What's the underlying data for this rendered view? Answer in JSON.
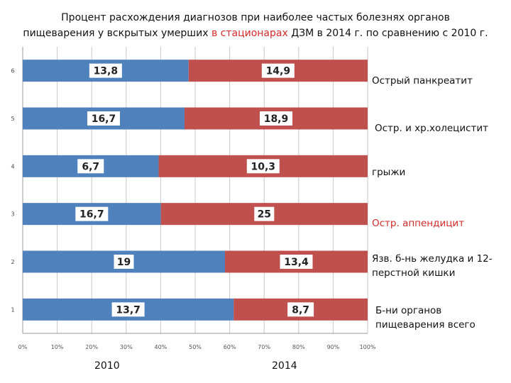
{
  "title": {
    "line1": "Процент расхождения диагнозов при наиболее частых  болезнях органов",
    "line2_before": "пищеварения у вскрытых умерших ",
    "line2_highlight": "в стационарах",
    "line2_after": " ДЗМ в 2014 г. по сравнению  с 2010 г."
  },
  "colors": {
    "series_2010": "#4f81bd",
    "series_2014": "#c0504d",
    "highlight": "#d42a2a"
  },
  "chart_data": {
    "type": "bar",
    "orientation": "horizontal",
    "stacked": "percent",
    "title": "Процент расхождения диагнозов при наиболее частых болезнях органов пищеварения у вскрытых умерших в стационарах ДЗМ в 2014 г. по сравнению с 2010 г.",
    "categories": [
      "1",
      "2",
      "3",
      "4",
      "5",
      "6"
    ],
    "series": [
      {
        "name": "2010",
        "values": [
          13.7,
          19,
          16.7,
          6.7,
          16.7,
          13.8
        ],
        "labels": [
          "13,7",
          "19",
          "16,7",
          "6,7",
          "16,7",
          "13,8"
        ]
      },
      {
        "name": "2014",
        "values": [
          8.7,
          13.4,
          25,
          10.3,
          18.9,
          14.9
        ],
        "labels": [
          "8,7",
          "13,4",
          "25",
          "10,3",
          "18,9",
          "14,9"
        ]
      }
    ],
    "x_ticks": [
      "0%",
      "10%",
      "20%",
      "30%",
      "40%",
      "50%",
      "60%",
      "70%",
      "80%",
      "90%",
      "100%"
    ],
    "xlim": [
      0,
      100
    ],
    "grid": true
  },
  "category_names": [
    {
      "text": "Б-ни органов пищеварения всего",
      "highlight": false
    },
    {
      "text": "Язв. б-нь желудка и 12-перстной кишки",
      "highlight": false
    },
    {
      "text": "Остр. аппендицит",
      "highlight": true
    },
    {
      "text": "грыжи",
      "highlight": false
    },
    {
      "text": "Остр. и хр.холецистит",
      "highlight": false
    },
    {
      "text": "Острый панкреатит",
      "highlight": false
    }
  ],
  "years": {
    "left": "2010",
    "right": "2014"
  }
}
